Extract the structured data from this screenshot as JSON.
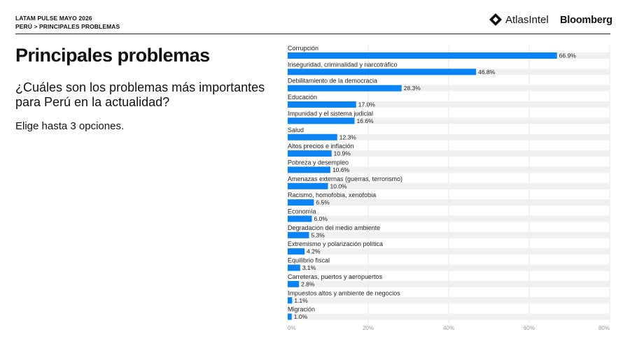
{
  "header": {
    "survey": "LATAM PULSE MAYO 2026",
    "breadcrumb": "PERÚ > PRINCIPALES PROBLEMAS",
    "brand_atlas": "AtlasIntel",
    "brand_bloomberg": "Bloomberg"
  },
  "main": {
    "title": "Principales problemas",
    "question": "¿Cuáles son los problemas más importantes para Perú en la actualidad?",
    "instruction": "Elige hasta 3 opciones."
  },
  "colors": {
    "bar": "#0a84f5",
    "track": "#f0f0f0"
  },
  "chart_data": {
    "type": "bar",
    "orientation": "horizontal",
    "categories": [
      "Corrupción",
      "Inseguridad, criminalidad y narcotráfico",
      "Debilitamiento de la democracia",
      "Educación",
      "Impunidad y el sistema judicial",
      "Salud",
      "Altos precios e inflación",
      "Pobreza y desempleo",
      "Amenazas externas (guerras, terrorismo)",
      "Racismo, homofobia, xenofobia",
      "Economía",
      "Degradación del medio ambiente",
      "Extremismo y polarización política",
      "Equilibrio fiscal",
      "Carreteras, puertos y aeropuertos",
      "Impuestos altos y ambiente de negocios",
      "Migración"
    ],
    "values": [
      66.9,
      46.8,
      28.3,
      17.0,
      16.6,
      12.3,
      10.9,
      10.6,
      10.0,
      6.5,
      6.0,
      5.3,
      4.2,
      3.1,
      2.8,
      1.1,
      1.0
    ],
    "value_labels": [
      "66.9%",
      "46.8%",
      "28.3%",
      "17.0%",
      "16.6%",
      "12.3%",
      "10.9%",
      "10.6%",
      "10.0%",
      "6.5%",
      "6.0%",
      "5.3%",
      "4.2%",
      "3.1%",
      "2.8%",
      "1.1%",
      "1.0%"
    ],
    "xlim": [
      0,
      80
    ],
    "xticks": [
      "0%",
      "20%",
      "40%",
      "60%",
      "80%"
    ],
    "grid": true
  }
}
